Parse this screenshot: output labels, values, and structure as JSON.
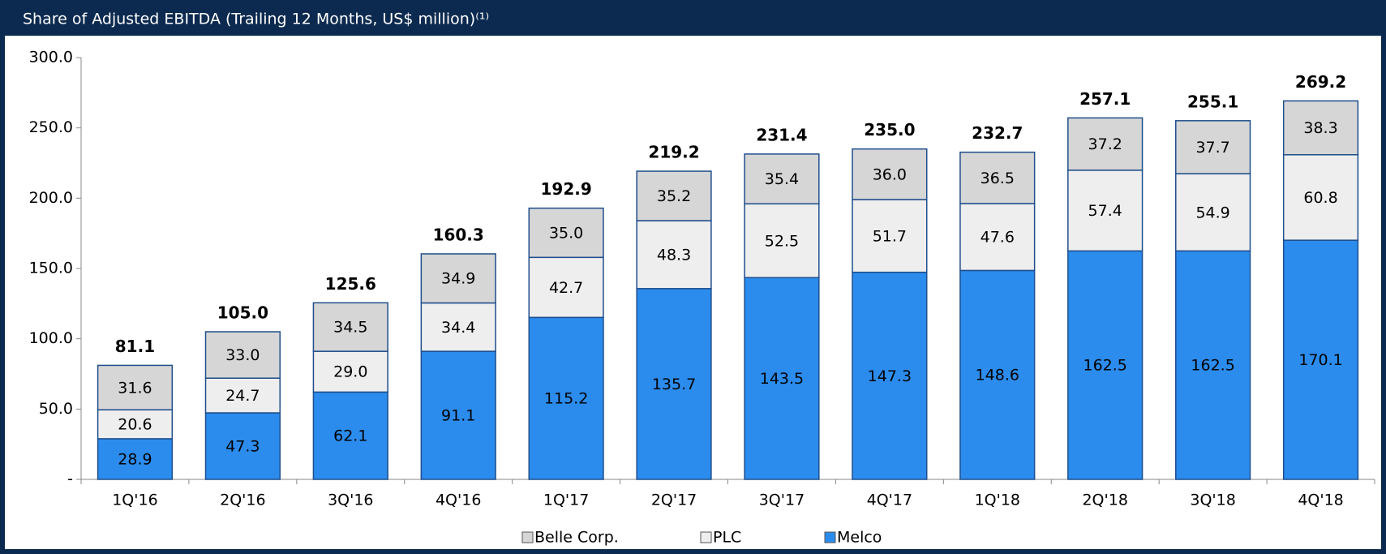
{
  "chart_data": {
    "type": "stacked_bar",
    "title": "Share of Adjusted EBITDA (Trailing 12 Months, US$ million)⁽¹⁾",
    "categories": [
      "1Q'16",
      "2Q'16",
      "3Q'16",
      "4Q'16",
      "1Q'17",
      "2Q'17",
      "3Q'17",
      "4Q'17",
      "1Q'18",
      "2Q'18",
      "3Q'18",
      "4Q'18"
    ],
    "series": [
      {
        "name": "Melco",
        "color": "#2b8cee",
        "values": [
          28.9,
          47.3,
          62.1,
          91.1,
          115.2,
          135.7,
          143.5,
          147.3,
          148.6,
          162.5,
          162.5,
          170.1
        ],
        "value_labels": [
          "28.9",
          "47.3",
          "62.1",
          "91.1",
          "115.2",
          "135.7",
          "143.5",
          "147.3",
          "148.6",
          "162.5",
          "162.5",
          "170.1"
        ]
      },
      {
        "name": "PLC",
        "color": "#eeeeee",
        "values": [
          20.6,
          24.7,
          29.0,
          34.4,
          42.7,
          48.3,
          52.5,
          51.7,
          47.6,
          57.4,
          54.9,
          60.8
        ],
        "value_labels": [
          "20.6",
          "24.7",
          "29.0",
          "34.4",
          "42.7",
          "48.3",
          "52.5",
          "51.7",
          "47.6",
          "57.4",
          "54.9",
          "60.8"
        ]
      },
      {
        "name": "Belle Corp.",
        "color": "#d6d6d6",
        "values": [
          31.6,
          33.0,
          34.5,
          34.9,
          35.0,
          35.2,
          35.4,
          36.0,
          36.5,
          37.2,
          37.7,
          38.3
        ],
        "value_labels": [
          "31.6",
          "33.0",
          "34.5",
          "34.9",
          "35.0",
          "35.2",
          "35.4",
          "36.0",
          "36.5",
          "37.2",
          "37.7",
          "38.3"
        ]
      }
    ],
    "totals": [
      81.1,
      105.0,
      125.6,
      160.3,
      192.9,
      219.2,
      231.4,
      235.0,
      232.7,
      257.1,
      255.1,
      269.2
    ],
    "total_labels": [
      "81.1",
      "105.0",
      "125.6",
      "160.3",
      "192.9",
      "219.2",
      "231.4",
      "235.0",
      "232.7",
      "257.1",
      "255.1",
      "269.2"
    ],
    "ylim": [
      0,
      300
    ],
    "yticks": [
      {
        "value": 0,
        "label": "-"
      },
      {
        "value": 50,
        "label": "50.0"
      },
      {
        "value": 100,
        "label": "100.0"
      },
      {
        "value": 150,
        "label": "150.0"
      },
      {
        "value": 200,
        "label": "200.0"
      },
      {
        "value": 250,
        "label": "250.0"
      },
      {
        "value": 300,
        "label": "300.0"
      }
    ],
    "legend": "bottom"
  }
}
